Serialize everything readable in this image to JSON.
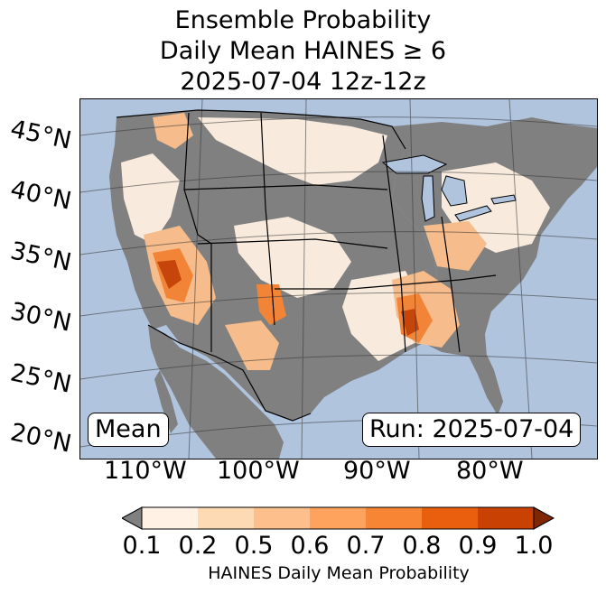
{
  "title": {
    "line1": "Ensemble Probability",
    "line2": "Daily Mean HAINES ≥ 6",
    "line3": "2025-07-04 12z-12z"
  },
  "map": {
    "latitude_labels": [
      "45°N",
      "40°N",
      "35°N",
      "30°N",
      "25°N",
      "20°N"
    ],
    "longitude_labels": [
      "110°W",
      "100°W",
      "90°W",
      "80°W"
    ],
    "stat_label": "Mean",
    "run_label": "Run: 2025-07-04",
    "colors": {
      "ocean": "#b0c4de",
      "land_below_threshold": "#808080"
    }
  },
  "colorbar": {
    "label": "HAINES Daily Mean Probability",
    "ticks": [
      "0.1",
      "0.2",
      "0.5",
      "0.6",
      "0.7",
      "0.8",
      "0.9",
      "1.0"
    ],
    "colors": [
      "#fff1e3",
      "#fdd9b4",
      "#fdc08c",
      "#fda35d",
      "#f88534",
      "#e95f0d",
      "#c94204"
    ],
    "under_color": "#808080",
    "over_color": "#7f2704"
  }
}
